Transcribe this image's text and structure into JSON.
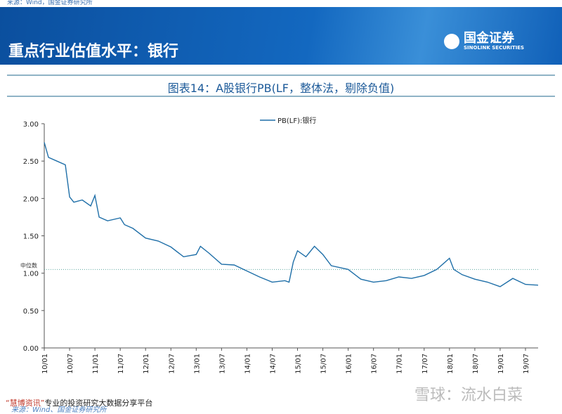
{
  "header": {
    "title": "重点行业估值水平：银行",
    "logo_cn": "国金证券",
    "logo_en": "SINOLINK SECURITIES",
    "top_strip": "来源：Wind，国金证券研究所"
  },
  "chart_data": {
    "type": "line",
    "title": "图表14：A股银行PB(LF，整体法，剔除负值)",
    "ylim": [
      0,
      3
    ],
    "yticks": [
      "0.00",
      "0.50",
      "1.00",
      "1.50",
      "2.00",
      "2.50",
      "3.00"
    ],
    "xticks": [
      "10/01",
      "10/07",
      "11/01",
      "11/07",
      "12/01",
      "12/07",
      "13/01",
      "13/07",
      "14/01",
      "14/07",
      "15/01",
      "15/07",
      "16/01",
      "16/07",
      "17/01",
      "17/07",
      "18/01",
      "18/07",
      "19/01",
      "19/07"
    ],
    "series": [
      {
        "name": "PB(LF):银行",
        "color": "#1f6fa8",
        "x": [
          "2010-01",
          "2010-02",
          "2010-04",
          "2010-06",
          "2010-07",
          "2010-08",
          "2010-10",
          "2010-12",
          "2011-01",
          "2011-02",
          "2011-04",
          "2011-07",
          "2011-08",
          "2011-10",
          "2012-01",
          "2012-04",
          "2012-07",
          "2012-10",
          "2013-01",
          "2013-02",
          "2013-04",
          "2013-07",
          "2013-10",
          "2014-01",
          "2014-04",
          "2014-07",
          "2014-10",
          "2014-11",
          "2014-12",
          "2015-01",
          "2015-03",
          "2015-05",
          "2015-07",
          "2015-09",
          "2016-01",
          "2016-04",
          "2016-07",
          "2016-10",
          "2017-01",
          "2017-04",
          "2017-07",
          "2017-10",
          "2018-01",
          "2018-02",
          "2018-04",
          "2018-07",
          "2018-10",
          "2019-01",
          "2019-04",
          "2019-07",
          "2019-10"
        ],
        "y": [
          2.75,
          2.55,
          2.5,
          2.45,
          2.02,
          1.95,
          1.98,
          1.9,
          2.04,
          1.75,
          1.7,
          1.74,
          1.65,
          1.6,
          1.47,
          1.43,
          1.35,
          1.22,
          1.25,
          1.36,
          1.27,
          1.12,
          1.11,
          1.03,
          0.95,
          0.88,
          0.9,
          0.88,
          1.15,
          1.3,
          1.22,
          1.36,
          1.25,
          1.1,
          1.05,
          0.92,
          0.88,
          0.9,
          0.95,
          0.93,
          0.97,
          1.05,
          1.2,
          1.05,
          0.98,
          0.92,
          0.88,
          0.82,
          0.93,
          0.85,
          0.84
        ]
      }
    ],
    "annotations": [
      {
        "label": "中位数",
        "value": 1.05,
        "color": "#5fa8a0"
      }
    ]
  },
  "footer": {
    "brand": "“慧博资讯”",
    "tagline": "专业的投资研究大数据分享平台",
    "source": "来源：Wind、国金证券研究所",
    "watermark": "雪球：流水白菜"
  }
}
